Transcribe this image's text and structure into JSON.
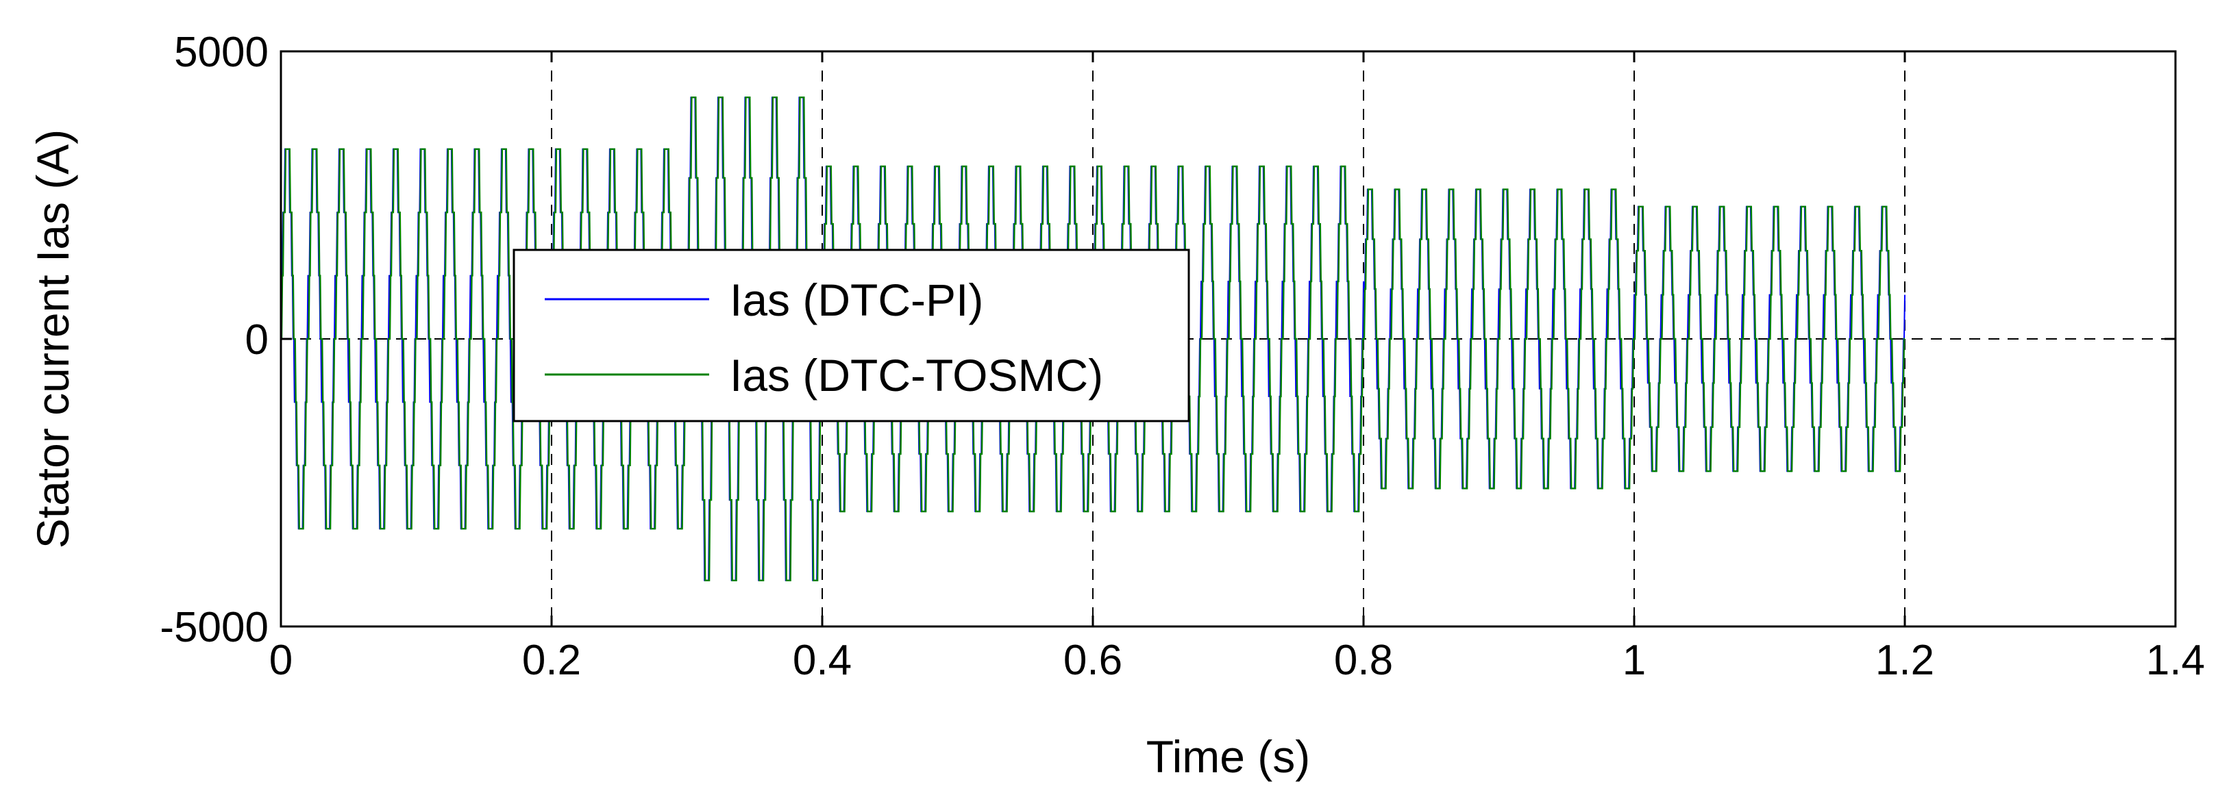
{
  "chart_data": {
    "type": "line",
    "title": "",
    "xlabel": "Time (s)",
    "ylabel": "Stator current Ias (A)",
    "xlim": [
      0,
      1.4
    ],
    "ylim": [
      -5000,
      5000
    ],
    "xticks": [
      0,
      0.2,
      0.4,
      0.6,
      0.8,
      1,
      1.2,
      1.4
    ],
    "xtick_labels": [
      "0",
      "0.2",
      "0.4",
      "0.6",
      "0.8",
      "1",
      "1.2",
      "1.4"
    ],
    "yticks": [
      -5000,
      0,
      5000
    ],
    "ytick_labels": [
      "-5000",
      "0",
      "5000"
    ],
    "grid": true,
    "legend_position": "center-left",
    "signal_end_time": 1.2,
    "approx_frequency_hz": 50,
    "series": [
      {
        "name": "Ias (DTC-PI)",
        "color": "#0000ff",
        "amplitude_segments": [
          {
            "t_start": 0.0,
            "t_end": 0.3,
            "amplitude": 3300
          },
          {
            "t_start": 0.3,
            "t_end": 0.4,
            "amplitude": 4200
          },
          {
            "t_start": 0.4,
            "t_end": 0.8,
            "amplitude": 3000
          },
          {
            "t_start": 0.8,
            "t_end": 1.0,
            "amplitude": 2600
          },
          {
            "t_start": 1.0,
            "t_end": 1.2,
            "amplitude": 2300
          }
        ]
      },
      {
        "name": "Ias (DTC-TOSMC)",
        "color": "#008000",
        "amplitude_segments": [
          {
            "t_start": 0.0,
            "t_end": 0.3,
            "amplitude": 3300
          },
          {
            "t_start": 0.3,
            "t_end": 0.4,
            "amplitude": 4200
          },
          {
            "t_start": 0.4,
            "t_end": 0.8,
            "amplitude": 3000
          },
          {
            "t_start": 0.8,
            "t_end": 1.0,
            "amplitude": 2600
          },
          {
            "t_start": 1.0,
            "t_end": 1.2,
            "amplitude": 2300
          }
        ]
      }
    ]
  }
}
